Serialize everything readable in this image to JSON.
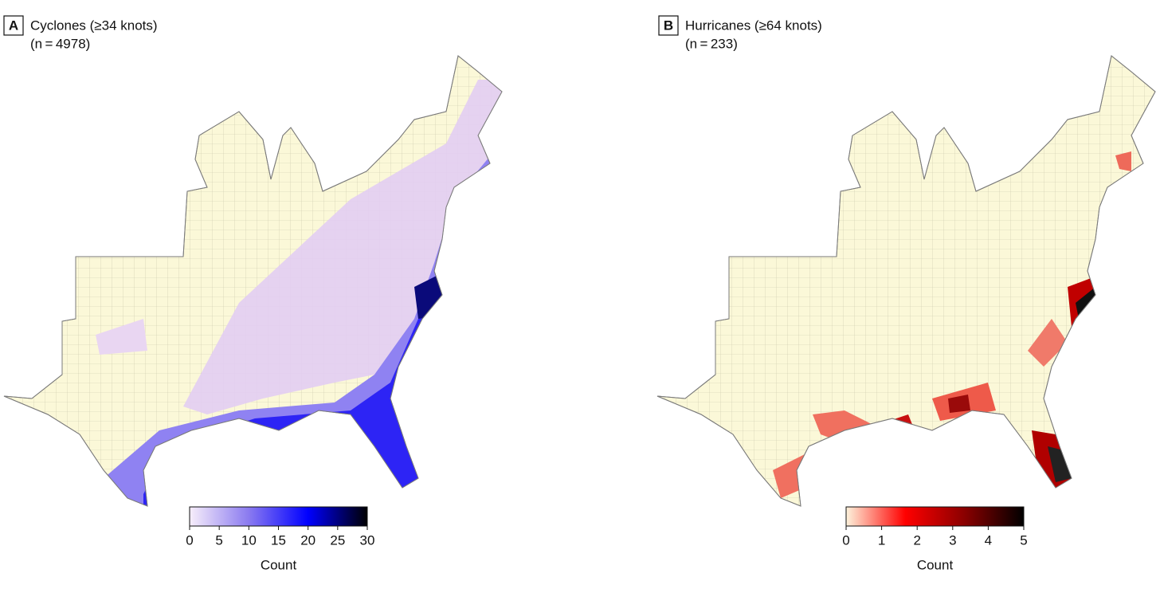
{
  "panels": [
    {
      "label": "A",
      "title": "Cyclones (≥34 knots)",
      "subtitle": "(n = 4978)",
      "colorbar": {
        "title": "Count",
        "range": [
          0,
          30
        ],
        "ticks": [
          0,
          5,
          10,
          15,
          20,
          25,
          30
        ],
        "colors": [
          "#f7eefa",
          "#8a7af0",
          "#0000ff",
          "#000000"
        ]
      }
    },
    {
      "label": "B",
      "title": "Hurricanes (≥64 knots)",
      "subtitle": "(n = 233)",
      "colorbar": {
        "title": "Count",
        "range": [
          0,
          5
        ],
        "ticks": [
          0,
          1,
          2,
          3,
          4,
          5
        ],
        "colors": [
          "#fdf3dc",
          "#ff0000",
          "#8a0000",
          "#000000"
        ]
      }
    }
  ]
}
